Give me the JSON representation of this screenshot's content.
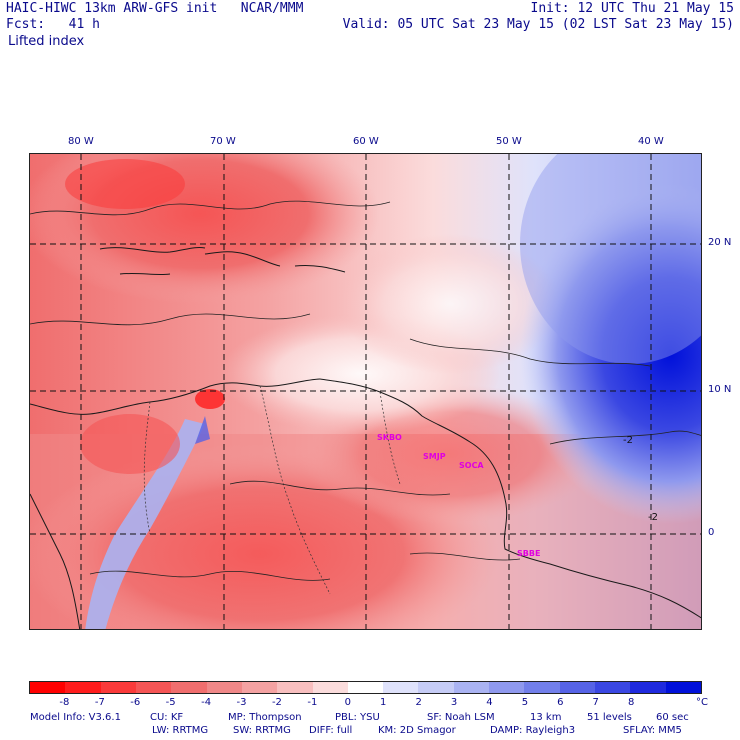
{
  "header": {
    "model_line": "HAIC-HIWC 13km ARW-GFS init   NCAR/MMM",
    "init_line": "Init: 12 UTC Thu 21 May 15",
    "fcst_line": "Fcst:   41 h",
    "valid_line": "Valid: 05 UTC Sat 23 May 15 (02 LST Sat 23 May 15)",
    "field_name": "Lifted index"
  },
  "map": {
    "lon_labels": [
      "80 W",
      "70 W",
      "60 W",
      "50 W",
      "40 W"
    ],
    "lat_labels": [
      "20 N",
      "10 N",
      "0"
    ],
    "contour_labels": [
      "-2",
      "-2"
    ],
    "stations": [
      "SKBO",
      "SMJP",
      "SOCA",
      "SBBE"
    ],
    "colors": {
      "strong_negative": "#ff1a1a",
      "negative": "#f0707a",
      "near_zero": "#fbe4e4",
      "positive": "#c9d0f5",
      "strong_positive": "#1a1ae6"
    }
  },
  "colorbar": {
    "tick_labels": [
      "-8",
      "-7",
      "-6",
      "-5",
      "-4",
      "-3",
      "-2",
      "-1",
      "0",
      "1",
      "2",
      "3",
      "4",
      "5",
      "6",
      "7",
      "8"
    ],
    "unit": "°C",
    "colors": [
      "#ff0000",
      "#ff1c1c",
      "#fa3a3a",
      "#f55555",
      "#f06e6e",
      "#f08888",
      "#f4a2a2",
      "#f8bfbf",
      "#fbdcdc",
      "#ffffff",
      "#dfe2fb",
      "#c6ccf6",
      "#aab3f2",
      "#8f99ee",
      "#727fea",
      "#5663e6",
      "#3a47e2",
      "#1f2ade",
      "#0010da"
    ]
  },
  "footer": {
    "line1_items": [
      "Model Info: V3.6.1",
      "CU: KF",
      "MP: Thompson",
      "PBL: YSU",
      "SF: Noah LSM",
      "13 km",
      "51 levels",
      "60 sec"
    ],
    "line2_items": [
      "LW: RRTMG",
      "SW: RRTMG",
      "DIFF: full",
      "KM: 2D Smagor",
      "DAMP: Rayleigh3",
      "SFLAY: MM5"
    ]
  }
}
